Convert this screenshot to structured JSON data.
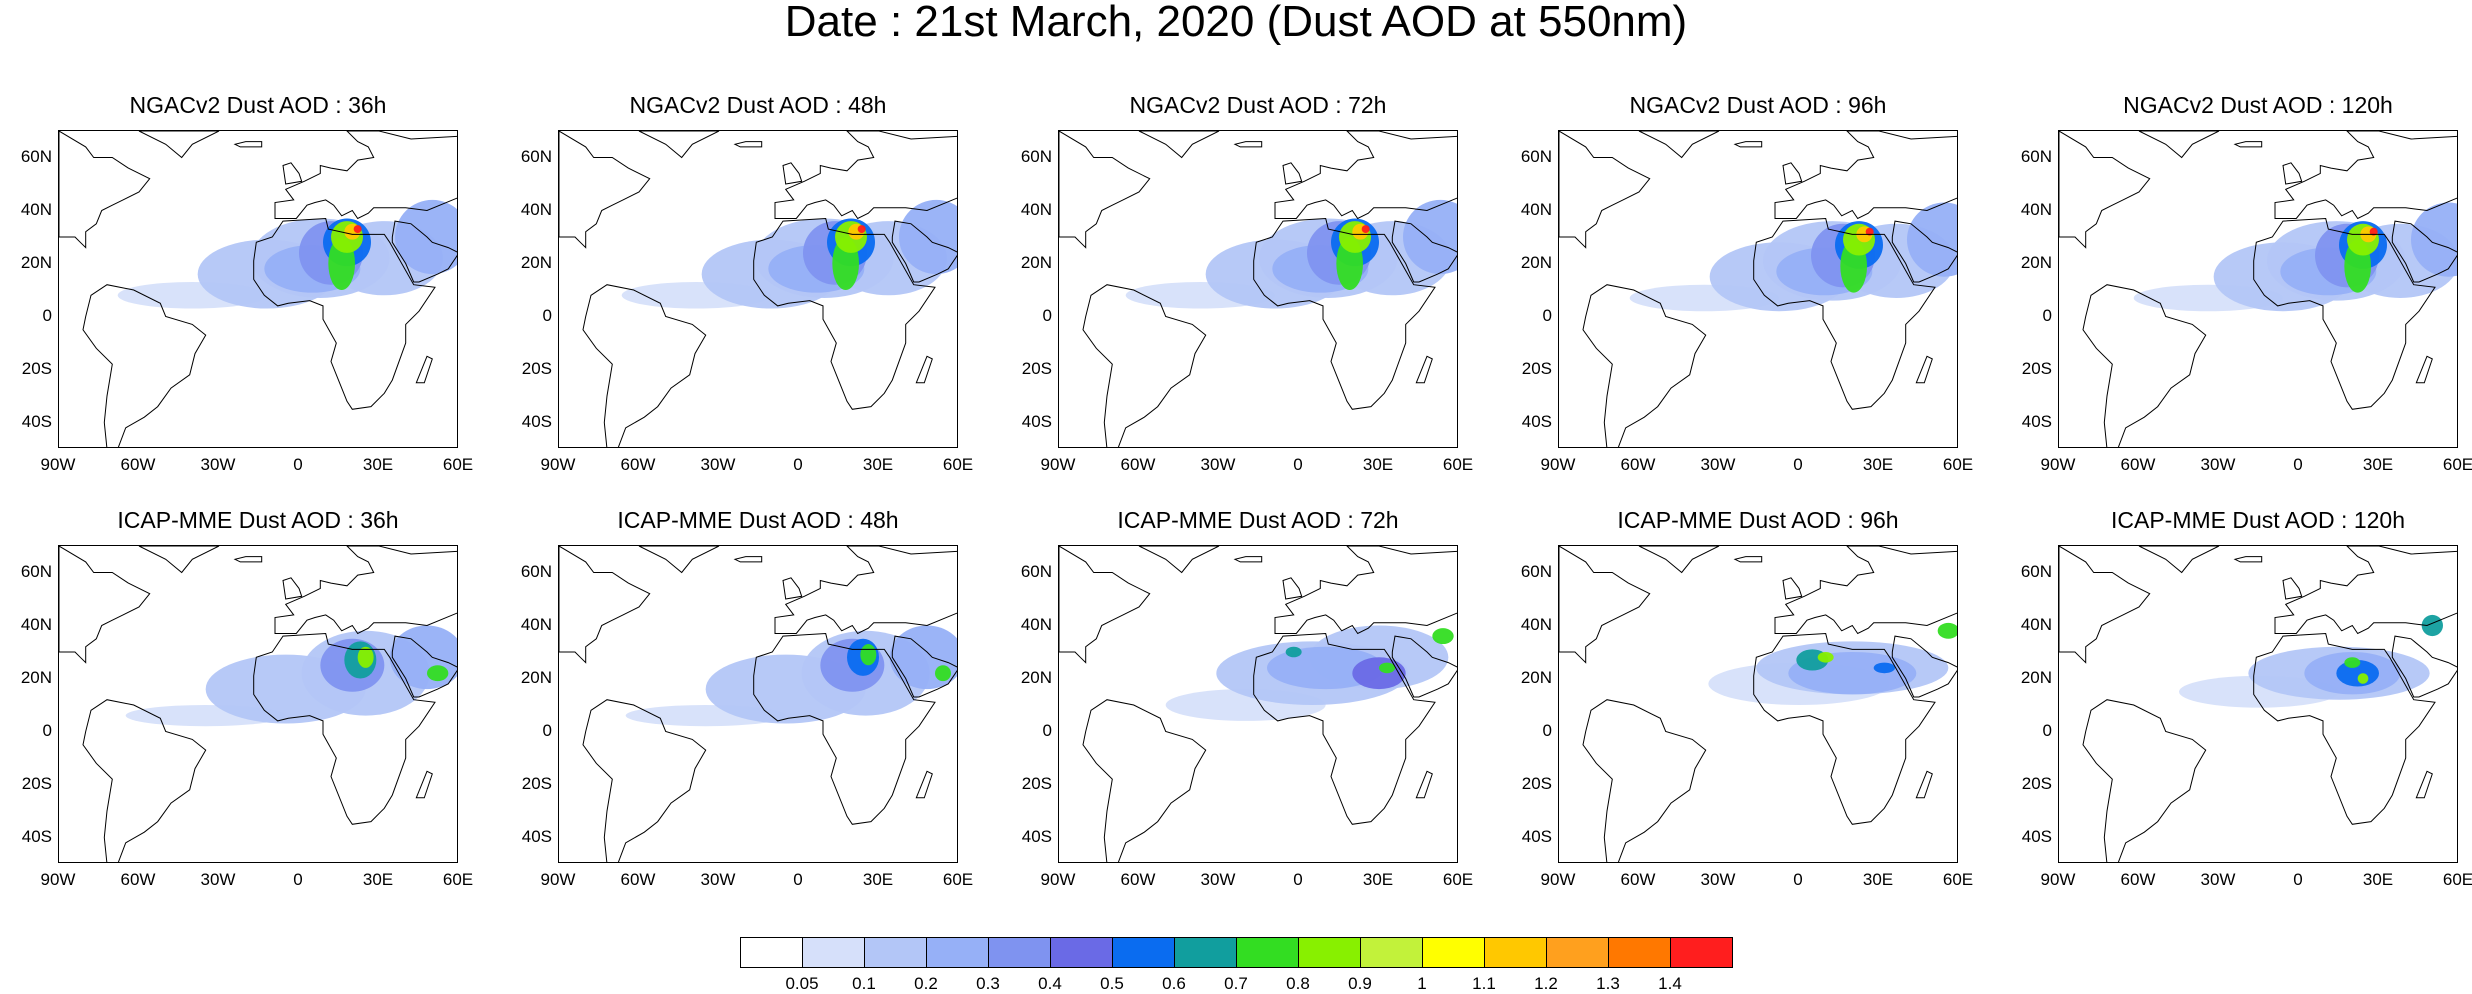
{
  "title": "Date : 21st March, 2020 (Dust AOD at 550nm)",
  "map_extent": {
    "lon": [
      -90,
      60
    ],
    "lat": [
      -50,
      70
    ]
  },
  "axis": {
    "lat_ticks": [
      "60N",
      "40N",
      "20N",
      "0",
      "20S",
      "40S"
    ],
    "lat_values": [
      60,
      40,
      20,
      0,
      -20,
      -40
    ],
    "lon_ticks": [
      "90W",
      "60W",
      "30W",
      "0",
      "30E",
      "60E"
    ],
    "lon_values": [
      -90,
      -60,
      -30,
      0,
      30,
      60
    ]
  },
  "panels": [
    {
      "title": "NGACv2 Dust AOD : 36h",
      "model": "NGACv2",
      "lead": "36h"
    },
    {
      "title": "NGACv2 Dust AOD : 48h",
      "model": "NGACv2",
      "lead": "48h"
    },
    {
      "title": "NGACv2 Dust AOD : 72h",
      "model": "NGACv2",
      "lead": "72h"
    },
    {
      "title": "NGACv2 Dust AOD : 96h",
      "model": "NGACv2",
      "lead": "96h"
    },
    {
      "title": "NGACv2 Dust AOD : 120h",
      "model": "NGACv2",
      "lead": "120h"
    },
    {
      "title": "ICAP-MME Dust AOD : 36h",
      "model": "ICAP-MME",
      "lead": "36h"
    },
    {
      "title": "ICAP-MME Dust AOD : 48h",
      "model": "ICAP-MME",
      "lead": "48h"
    },
    {
      "title": "ICAP-MME Dust AOD : 72h",
      "model": "ICAP-MME",
      "lead": "72h"
    },
    {
      "title": "ICAP-MME Dust AOD : 96h",
      "model": "ICAP-MME",
      "lead": "96h"
    },
    {
      "title": "ICAP-MME Dust AOD : 120h",
      "model": "ICAP-MME",
      "lead": "120h"
    }
  ],
  "colorbar": {
    "labels": [
      "0.05",
      "0.1",
      "0.2",
      "0.3",
      "0.4",
      "0.5",
      "0.6",
      "0.7",
      "0.8",
      "0.9",
      "1",
      "1.1",
      "1.2",
      "1.3",
      "1.4"
    ],
    "colors": [
      "#ffffff",
      "#d6e0fa",
      "#b3c6f7",
      "#96b0f7",
      "#7f93f0",
      "#6a6ae6",
      "#0a6cf0",
      "#119e9e",
      "#33dd22",
      "#88f000",
      "#c2f23a",
      "#ffff00",
      "#ffc800",
      "#ffa01e",
      "#ff7800",
      "#ff1e1e"
    ]
  }
}
